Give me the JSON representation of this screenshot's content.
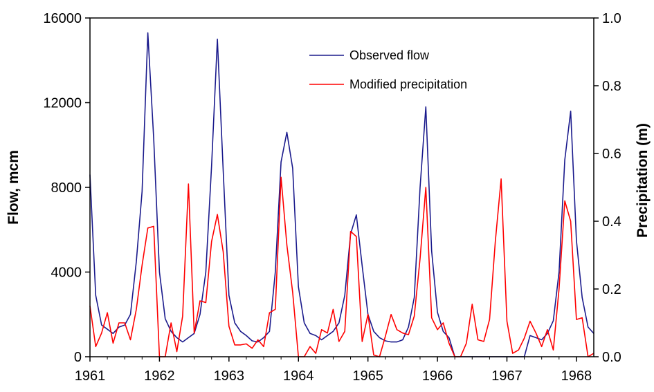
{
  "chart_data": {
    "type": "line",
    "xlabel": "",
    "ylabel": "Flow, mcm",
    "y2label": "Precipitation (m)",
    "xlim": [
      1961,
      1968.25
    ],
    "ylim": [
      0,
      16000
    ],
    "y2lim": [
      0,
      1.0
    ],
    "x_ticks": [
      "1961",
      "1962",
      "1963",
      "1964",
      "1965",
      "1966",
      "1967",
      "1968"
    ],
    "y_ticks": [
      "0",
      "4000",
      "8000",
      "12000",
      "16000"
    ],
    "y2_ticks": [
      "0.0",
      "0.2",
      "0.4",
      "0.6",
      "0.8",
      "1.0"
    ],
    "grid": false,
    "legend": "top-center",
    "series": [
      {
        "name": "Observed flow",
        "axis": "left",
        "color": "#1a1a8c",
        "x": [
          1961.0,
          1961.083,
          1961.167,
          1961.25,
          1961.333,
          1961.417,
          1961.5,
          1961.583,
          1961.667,
          1961.75,
          1961.833,
          1961.917,
          1962.0,
          1962.083,
          1962.167,
          1962.25,
          1962.333,
          1962.417,
          1962.5,
          1962.583,
          1962.667,
          1962.75,
          1962.833,
          1962.917,
          1963.0,
          1963.083,
          1963.167,
          1963.25,
          1963.333,
          1963.417,
          1963.5,
          1963.583,
          1963.667,
          1963.75,
          1963.833,
          1963.917,
          1964.0,
          1964.083,
          1964.167,
          1964.25,
          1964.333,
          1964.417,
          1964.5,
          1964.583,
          1964.667,
          1964.75,
          1964.833,
          1964.917,
          1965.0,
          1965.083,
          1965.167,
          1965.25,
          1965.333,
          1965.417,
          1965.5,
          1965.583,
          1965.667,
          1965.75,
          1965.833,
          1965.917,
          1966.0,
          1966.083,
          1966.167,
          1966.25,
          1966.333,
          1966.417,
          1966.5,
          1966.583,
          1966.667,
          1966.75,
          1966.833,
          1966.917,
          1967.0,
          1967.083,
          1967.167,
          1967.25,
          1967.333,
          1967.417,
          1967.5,
          1967.583,
          1967.667,
          1967.75,
          1967.833,
          1967.917,
          1968.0,
          1968.083,
          1968.167,
          1968.25
        ],
        "values": [
          8600,
          2900,
          1500,
          1300,
          1100,
          1400,
          1500,
          2000,
          4500,
          7800,
          15300,
          10300,
          4000,
          1800,
          1200,
          900,
          700,
          900,
          1100,
          2000,
          4000,
          9000,
          15000,
          8800,
          2900,
          1600,
          1200,
          1000,
          750,
          700,
          900,
          1200,
          4000,
          9200,
          10600,
          8900,
          3300,
          1600,
          1100,
          1000,
          800,
          1000,
          1200,
          1600,
          2900,
          5800,
          6700,
          4300,
          2000,
          1200,
          900,
          750,
          700,
          700,
          800,
          1400,
          2800,
          8000,
          11800,
          5000,
          2100,
          1200,
          900,
          0,
          0,
          0,
          0,
          0,
          0,
          0,
          0,
          0,
          0,
          0,
          0,
          0,
          1000,
          900,
          800,
          1100,
          1700,
          4000,
          9300,
          11600,
          5500,
          2800,
          1400,
          1100
        ]
      },
      {
        "name": "Modified precipitation",
        "axis": "right",
        "color": "#ff0000",
        "x": [
          1961.0,
          1961.083,
          1961.167,
          1961.25,
          1961.333,
          1961.417,
          1961.5,
          1961.583,
          1961.667,
          1961.75,
          1961.833,
          1961.917,
          1962.0,
          1962.083,
          1962.167,
          1962.25,
          1962.333,
          1962.417,
          1962.5,
          1962.583,
          1962.667,
          1962.75,
          1962.833,
          1962.917,
          1963.0,
          1963.083,
          1963.167,
          1963.25,
          1963.333,
          1963.417,
          1963.5,
          1963.583,
          1963.667,
          1963.75,
          1963.833,
          1963.917,
          1964.0,
          1964.083,
          1964.167,
          1964.25,
          1964.333,
          1964.417,
          1964.5,
          1964.583,
          1964.667,
          1964.75,
          1964.833,
          1964.917,
          1965.0,
          1965.083,
          1965.167,
          1965.25,
          1965.333,
          1965.417,
          1965.5,
          1965.583,
          1965.667,
          1965.75,
          1965.833,
          1965.917,
          1966.0,
          1966.083,
          1966.167,
          1966.25,
          1966.333,
          1966.417,
          1966.5,
          1966.583,
          1966.667,
          1966.75,
          1966.833,
          1966.917,
          1967.0,
          1967.083,
          1967.167,
          1967.25,
          1967.333,
          1967.417,
          1967.5,
          1967.583,
          1967.667,
          1967.75,
          1967.833,
          1967.917,
          1968.0,
          1968.083,
          1968.167,
          1968.25
        ],
        "values": [
          0.15,
          0.03,
          0.07,
          0.13,
          0.04,
          0.1,
          0.1,
          0.05,
          0.14,
          0.27,
          0.38,
          0.385,
          0.0,
          0.0,
          0.1,
          0.015,
          0.12,
          0.51,
          0.07,
          0.165,
          0.16,
          0.34,
          0.42,
          0.31,
          0.09,
          0.035,
          0.035,
          0.038,
          0.025,
          0.05,
          0.03,
          0.13,
          0.14,
          0.53,
          0.33,
          0.19,
          0.0,
          0.0,
          0.03,
          0.01,
          0.08,
          0.07,
          0.14,
          0.045,
          0.075,
          0.37,
          0.355,
          0.045,
          0.125,
          0.005,
          0.0,
          0.06,
          0.125,
          0.08,
          0.07,
          0.065,
          0.12,
          0.29,
          0.5,
          0.115,
          0.08,
          0.1,
          0.04,
          0.0,
          0.0,
          0.04,
          0.155,
          0.05,
          0.045,
          0.11,
          0.34,
          0.525,
          0.105,
          0.01,
          0.02,
          0.055,
          0.105,
          0.07,
          0.03,
          0.08,
          0.02,
          0.2,
          0.46,
          0.4,
          0.11,
          0.115,
          0.0,
          0.01
        ]
      }
    ]
  }
}
